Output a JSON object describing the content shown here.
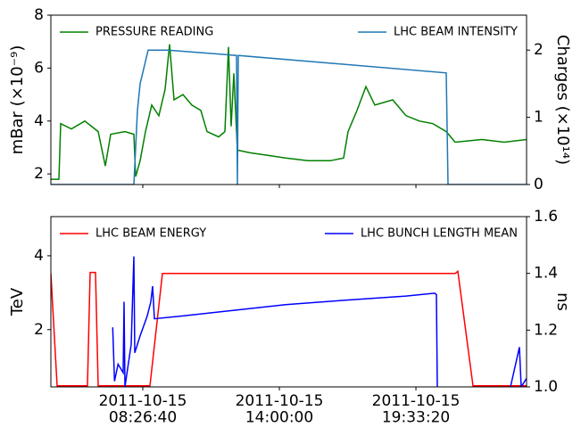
{
  "chart_data": [
    {
      "type": "line",
      "ylabel": "mBar (×10⁻⁹)",
      "y2label": "Charges (×10¹⁴)",
      "legend": "upper center",
      "xlim": [
        16936,
        86603
      ],
      "ylim": [
        1.6,
        8
      ],
      "yticks": [
        2,
        4,
        6,
        8
      ],
      "y2lim": [
        0,
        2.52
      ],
      "y2ticks": [
        0,
        1,
        2
      ],
      "series": [
        {
          "name": "PRESSURE READING",
          "color": "#008000",
          "x": [
            16936,
            18112,
            18374,
            19942,
            21903,
            23863,
            24909,
            25693,
            27784,
            29091,
            29353,
            30006,
            30790,
            31705,
            32751,
            33666,
            34319,
            34973,
            36280,
            37587,
            38894,
            39809,
            41508,
            42423,
            42946,
            43338,
            43730,
            44253,
            46083,
            48697,
            51311,
            54578,
            57846,
            59806,
            60460,
            61767,
            63074,
            64381,
            66995,
            68955,
            70916,
            72876,
            74837,
            76144,
            80065,
            83332,
            86603
          ],
          "values": [
            1.8,
            1.8,
            3.9,
            3.7,
            4.0,
            3.6,
            2.3,
            3.5,
            3.6,
            3.5,
            1.9,
            2.5,
            3.6,
            4.6,
            4.2,
            5.2,
            6.9,
            4.8,
            5.0,
            4.6,
            4.4,
            3.6,
            3.4,
            3.6,
            6.8,
            3.8,
            5.8,
            2.9,
            2.8,
            2.7,
            2.6,
            2.5,
            2.5,
            2.6,
            3.6,
            4.4,
            5.3,
            4.6,
            4.8,
            4.2,
            4.0,
            3.9,
            3.6,
            3.2,
            3.3,
            3.2,
            3.3
          ]
        },
        {
          "name": "LHC BEAM INTENSITY",
          "color": "#1f77b4",
          "axis": "y2",
          "x": [
            16936,
            29091,
            29615,
            30006,
            31182,
            34058,
            44122,
            44253,
            44384,
            74837,
            75100,
            86603
          ],
          "values": [
            0,
            0,
            1.1,
            1.5,
            2.0,
            2.0,
            1.92,
            0,
            1.92,
            1.66,
            0,
            0
          ]
        }
      ]
    },
    {
      "type": "line",
      "ylabel": "TeV",
      "y2label": "ns",
      "legend": "upper center",
      "xlim": [
        16936,
        86603
      ],
      "ylim": [
        0.45,
        5.06
      ],
      "yticks": [
        2,
        4
      ],
      "y2lim": [
        1.0,
        1.6
      ],
      "y2ticks": [
        {
          "value": 1,
          "label": "1.0"
        },
        1.2,
        1.4,
        1.6
      ],
      "xticks": [
        {
          "value": 30400,
          "label": "2011-10-15\n08:26:40"
        },
        {
          "value": 50400,
          "label": "2011-10-15\n14:00:00"
        },
        {
          "value": 70400,
          "label": "2011-10-15\n19:33:20"
        }
      ],
      "series": [
        {
          "name": "LHC BEAM ENERGY",
          "color": "#ff0000",
          "x": [
            16936,
            17850,
            22295,
            22687,
            23471,
            23863,
            31443,
            33273,
            76144,
            76536,
            78757,
            86603
          ],
          "values": [
            3.52,
            0.48,
            0.48,
            3.55,
            3.55,
            0.48,
            0.48,
            3.52,
            3.52,
            3.58,
            0.48,
            0.48
          ]
        },
        {
          "name": "LHC BUNCH LENGTH MEAN",
          "color": "#0000ff",
          "axis": "y2",
          "x": [
            26000,
            26261,
            26784,
            27523,
            27654,
            27784,
            28700,
            29091,
            29222,
            30006,
            31050,
            31574,
            31836,
            32097,
            36280,
            43730,
            51311,
            59806,
            68955,
            73136,
            73397,
            73528,
            79000,
            84247,
            85554,
            85817,
            86603
          ],
          "values": [
            1.21,
            1.02,
            1.08,
            1.05,
            1.3,
            1.0,
            1.15,
            1.46,
            1.12,
            1.18,
            1.25,
            1.3,
            1.355,
            1.24,
            1.25,
            1.27,
            1.29,
            1.305,
            1.32,
            1.33,
            1.325,
            1.0,
            null,
            1.0,
            1.14,
            1.0,
            1.03
          ]
        }
      ]
    }
  ]
}
